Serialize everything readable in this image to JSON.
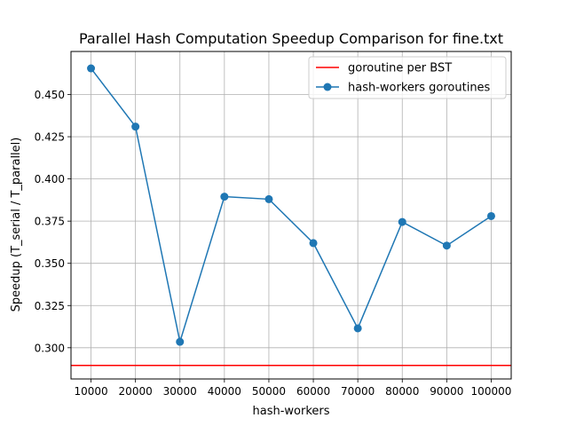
{
  "chart_data": {
    "type": "line",
    "title": "Parallel Hash Computation Speedup Comparison for fine.txt",
    "xlabel": "hash-workers",
    "ylabel": "Speedup (T_serial / T_parallel)",
    "x": [
      10000,
      20000,
      30000,
      40000,
      50000,
      60000,
      70000,
      80000,
      90000,
      100000
    ],
    "x_tick_labels": [
      "10000",
      "20000",
      "30000",
      "40000",
      "50000",
      "60000",
      "70000",
      "80000",
      "90000",
      "100000"
    ],
    "y_ticks": [
      0.3,
      0.325,
      0.35,
      0.375,
      0.4,
      0.425,
      0.45
    ],
    "y_tick_labels": [
      "0.300",
      "0.325",
      "0.350",
      "0.375",
      "0.400",
      "0.425",
      "0.450"
    ],
    "xlim": [
      5500,
      104500
    ],
    "ylim": [
      0.2815,
      0.4755
    ],
    "grid": true,
    "legend_position": "upper right",
    "series": [
      {
        "name": "goroutine per BST",
        "kind": "hline",
        "value": 0.2895,
        "color": "#ff0000"
      },
      {
        "name": "hash-workers goroutines",
        "kind": "line-marker",
        "values": [
          0.4655,
          0.431,
          0.3035,
          0.3895,
          0.388,
          0.362,
          0.3115,
          0.3745,
          0.3605,
          0.378
        ],
        "color": "#1f77b4"
      }
    ]
  }
}
